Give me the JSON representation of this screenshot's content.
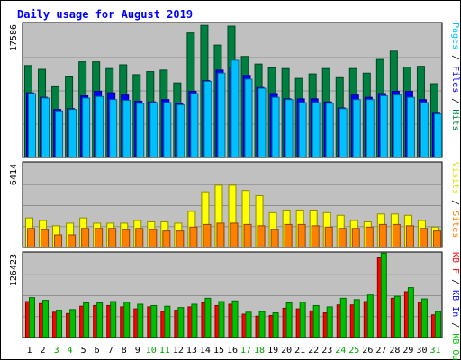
{
  "chart_data": {
    "type": "bar",
    "title": "Daily usage for August 2019",
    "categories": [
      "1",
      "2",
      "3",
      "4",
      "5",
      "6",
      "7",
      "8",
      "9",
      "10",
      "11",
      "12",
      "13",
      "14",
      "15",
      "16",
      "17",
      "18",
      "19",
      "20",
      "21",
      "22",
      "23",
      "24",
      "25",
      "26",
      "27",
      "28",
      "29",
      "30",
      "31"
    ],
    "weekend_days": [
      "3",
      "4",
      "10",
      "11",
      "17",
      "18",
      "24",
      "25",
      "31"
    ],
    "panels": [
      {
        "id": "hits",
        "ymax_label": "17586",
        "ylim": [
          0,
          17586
        ],
        "axis_label_parts": [
          {
            "text": "Pages",
            "color": "#00c0ff"
          },
          {
            "text": " / ",
            "color": "#000000"
          },
          {
            "text": "Files",
            "color": "#0000ff"
          },
          {
            "text": " / ",
            "color": "#000000"
          },
          {
            "text": "Hits",
            "color": "#008040"
          }
        ],
        "series": [
          {
            "name": "Hits",
            "color": "#008040",
            "values": [
              12200,
              11700,
              9400,
              10700,
              12700,
              12700,
              11800,
              12300,
              11000,
              11400,
              11600,
              9900,
              16500,
              17500,
              14900,
              17400,
              13400,
              12400,
              11900,
              11800,
              10500,
              11100,
              11800,
              10600,
              11800,
              11200,
              13000,
              14100,
              12000,
              12100,
              9800
            ]
          },
          {
            "name": "Files",
            "color": "#0000ff",
            "values": [
              8600,
              8000,
              6400,
              6500,
              8200,
              8800,
              8600,
              8300,
              7500,
              7400,
              7700,
              7200,
              8800,
              10200,
              11600,
              11900,
              10900,
              9300,
              8500,
              7800,
              7800,
              7800,
              7400,
              6600,
              8300,
              8000,
              8500,
              8800,
              8800,
              7700,
              5900
            ]
          },
          {
            "name": "Pages",
            "color": "#00c0ff",
            "values": [
              8500,
              7900,
              6200,
              6400,
              7900,
              8100,
              7700,
              7600,
              7200,
              7300,
              7300,
              7000,
              8500,
              10100,
              11200,
              12900,
              10400,
              9200,
              8000,
              7700,
              7300,
              7300,
              7200,
              6500,
              7700,
              7700,
              8200,
              8300,
              8000,
              7300,
              5800
            ]
          }
        ]
      },
      {
        "id": "visits",
        "ymax_label": "6414",
        "ylim": [
          0,
          6414
        ],
        "axis_label_parts": [
          {
            "text": "Visits",
            "color": "#e0e000"
          },
          {
            "text": " / ",
            "color": "#000000"
          },
          {
            "text": "Sites",
            "color": "#ff8000"
          }
        ],
        "series": [
          {
            "name": "Visits",
            "color": "#ffff00",
            "values": [
              2300,
              2100,
              1700,
              1900,
              2300,
              1900,
              1900,
              1900,
              2100,
              2000,
              2000,
              1900,
              2800,
              4300,
              4800,
              4800,
              4400,
              4000,
              2700,
              2900,
              2900,
              2900,
              2700,
              2500,
              2100,
              2000,
              2600,
              2600,
              2500,
              2100,
              1600
            ]
          },
          {
            "name": "Sites",
            "color": "#ff8000",
            "values": [
              1500,
              1400,
              1000,
              1000,
              1500,
              1500,
              1500,
              1400,
              1500,
              1400,
              1300,
              1300,
              1600,
              1800,
              1900,
              1900,
              1800,
              1700,
              1400,
              1800,
              1800,
              1700,
              1600,
              1500,
              1500,
              1600,
              1800,
              1800,
              1700,
              1500,
              1300
            ]
          }
        ]
      },
      {
        "id": "kbytes",
        "ymax_label": "126423",
        "ylim": [
          0,
          126423
        ],
        "axis_label_parts": [
          {
            "text": "KB F",
            "color": "#ff0000"
          },
          {
            "text": " / ",
            "color": "#000000"
          },
          {
            "text": "KB In",
            "color": "#0000ff"
          },
          {
            "text": " / ",
            "color": "#000000"
          },
          {
            "text": "KB Out",
            "color": "#00c000"
          }
        ],
        "series": [
          {
            "name": "KB F",
            "color": "#ff0000",
            "values": [
              55000,
              52000,
              39000,
              37000,
              48000,
              49000,
              49000,
              47000,
              44000,
              47000,
              40000,
              42000,
              47000,
              53000,
              49000,
              51000,
              36000,
              33000,
              34000,
              45000,
              44000,
              41000,
              38000,
              50000,
              50000,
              55000,
              121000,
              60000,
              70000,
              54000,
              35000
            ]
          },
          {
            "name": "KB In",
            "color": "#0000ff",
            "values": [
              0,
              0,
              0,
              0,
              0,
              0,
              0,
              0,
              0,
              0,
              0,
              0,
              0,
              0,
              0,
              0,
              0,
              0,
              0,
              0,
              0,
              0,
              0,
              0,
              0,
              0,
              0,
              0,
              0,
              0,
              0
            ]
          },
          {
            "name": "KB Out",
            "color": "#00c000",
            "values": [
              61000,
              57000,
              42000,
              43000,
              53000,
              53000,
              55000,
              54000,
              51000,
              49000,
              48000,
              46000,
              51000,
              60000,
              55000,
              56000,
              39000,
              40000,
              38000,
              53000,
              54000,
              49000,
              47000,
              60000,
              58000,
              65000,
              128000,
              63000,
              76000,
              59000,
              40000
            ]
          }
        ]
      }
    ]
  }
}
